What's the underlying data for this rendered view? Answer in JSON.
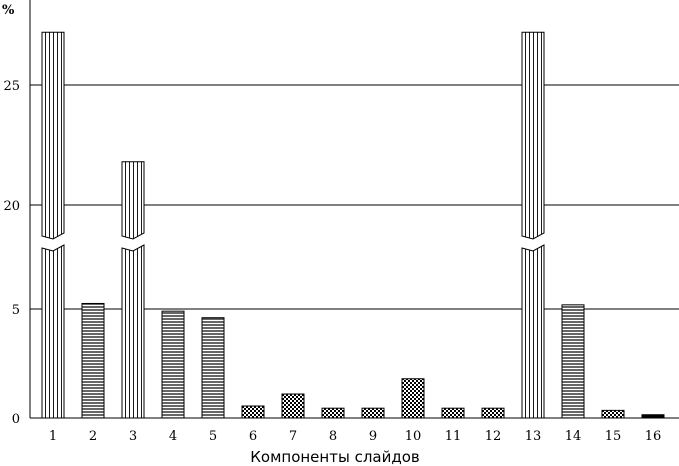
{
  "chart_data": {
    "type": "bar",
    "ylabel_unit": "%",
    "xlabel": "Компоненты слайдов",
    "categories": [
      "1",
      "2",
      "3",
      "4",
      "5",
      "6",
      "7",
      "8",
      "9",
      "10",
      "11",
      "12",
      "13",
      "14",
      "15",
      "16"
    ],
    "values": [
      27.2,
      5.8,
      21.8,
      4.9,
      4.6,
      0.55,
      1.1,
      0.45,
      0.45,
      1.8,
      0.45,
      0.45,
      27.2,
      5.6,
      0.35,
      0.15
    ],
    "broken_bars": [
      "1",
      "3",
      "13"
    ],
    "y_ticks": [
      {
        "label": "0",
        "value": 0
      },
      {
        "label": "5",
        "value": 5
      },
      {
        "label": "20",
        "value": 20
      },
      {
        "label": "25",
        "value": 25
      }
    ],
    "axis_break": "between 5 and 20",
    "grid": "horizontal lines at 5, 20, 25",
    "patterns": [
      "vertical-stripes",
      "horizontal-stripes",
      "vertical-stripes",
      "horizontal-stripes",
      "horizontal-stripes",
      "checker",
      "checker",
      "checker",
      "checker",
      "checker",
      "checker",
      "checker",
      "vertical-stripes",
      "horizontal-stripes",
      "checker",
      "solid"
    ]
  }
}
